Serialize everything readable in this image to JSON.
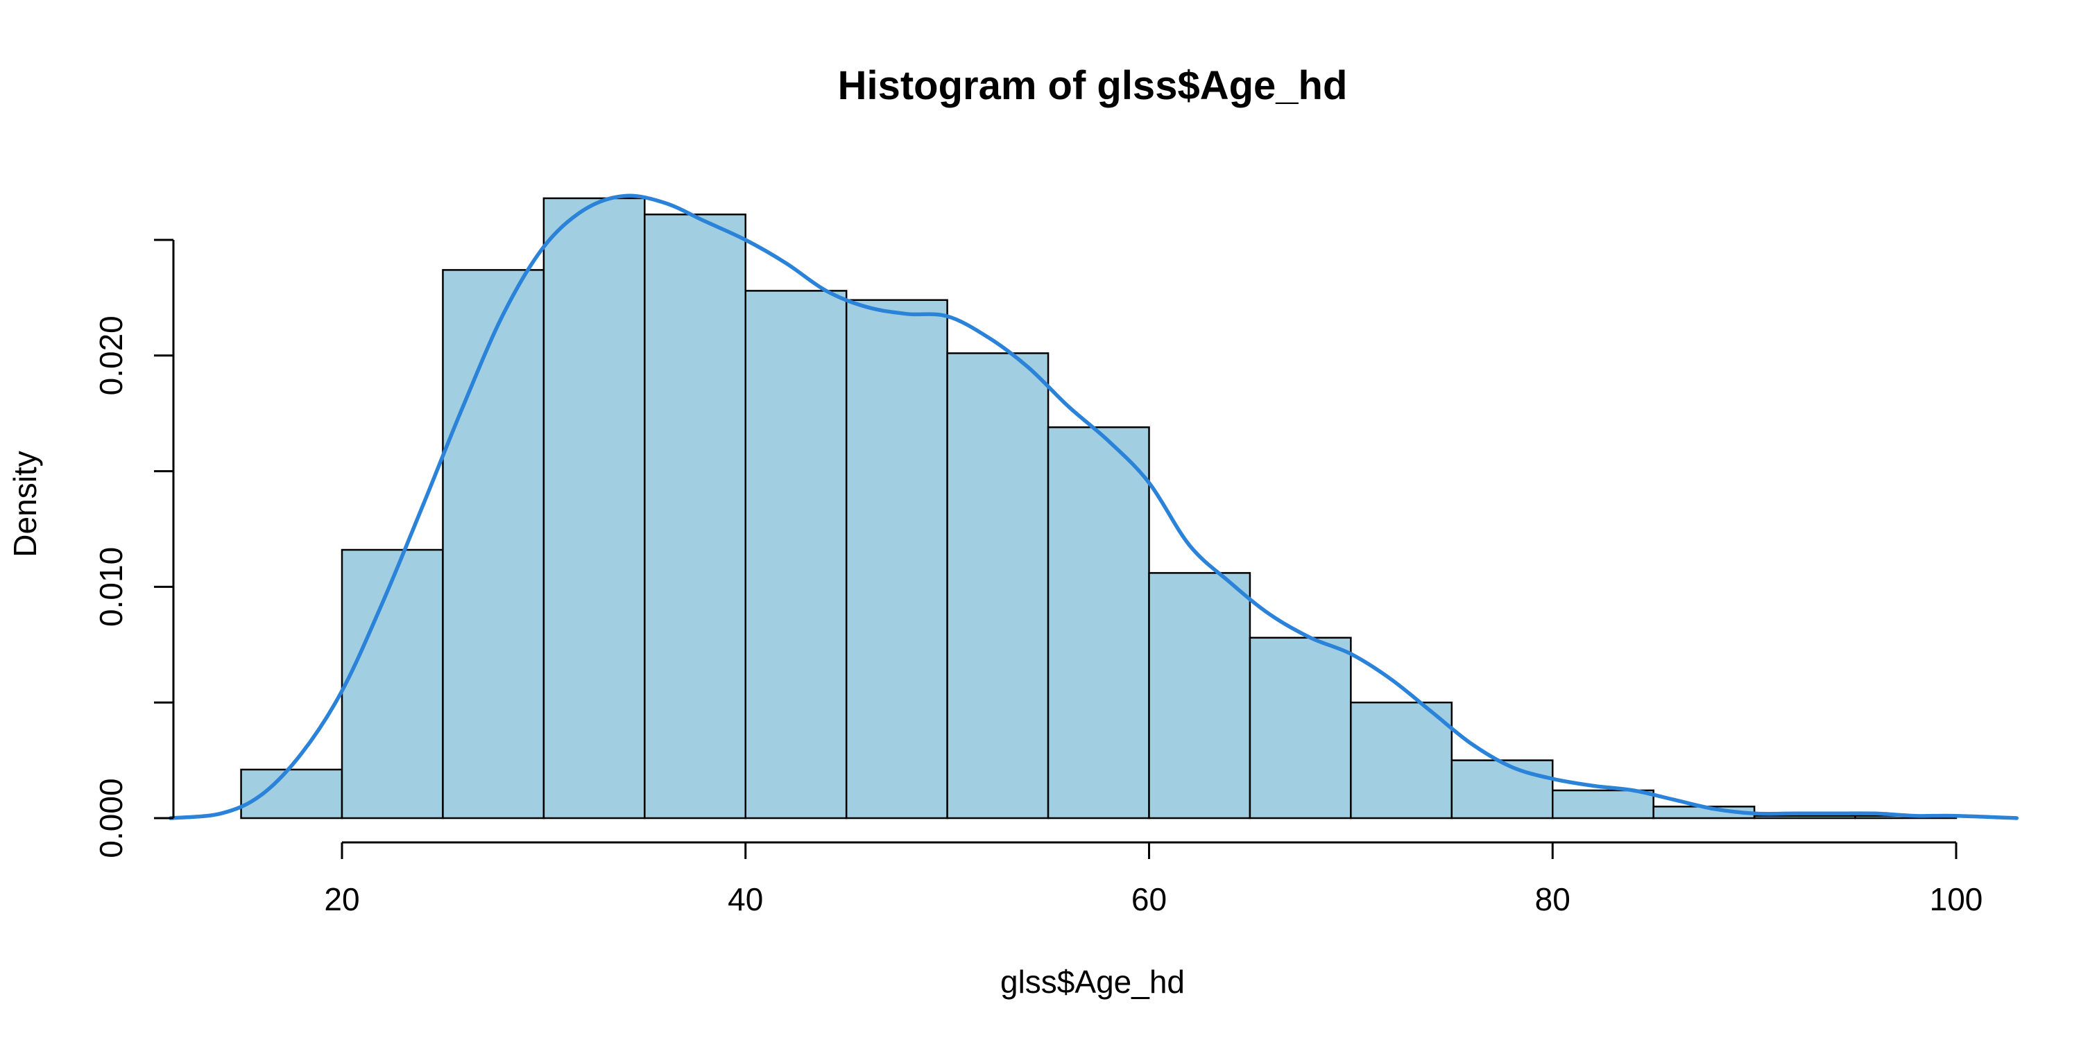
{
  "chart_data": {
    "type": "bar",
    "title": "Histogram of glss$Age_hd",
    "xlabel": "glss$Age_hd",
    "ylabel": "Density",
    "bins": [
      {
        "from": 15,
        "to": 20,
        "value": 0.0021
      },
      {
        "from": 20,
        "to": 25,
        "value": 0.0116
      },
      {
        "from": 25,
        "to": 30,
        "value": 0.0237
      },
      {
        "from": 30,
        "to": 35,
        "value": 0.0268
      },
      {
        "from": 35,
        "to": 40,
        "value": 0.0261
      },
      {
        "from": 40,
        "to": 45,
        "value": 0.0228
      },
      {
        "from": 45,
        "to": 50,
        "value": 0.0224
      },
      {
        "from": 50,
        "to": 55,
        "value": 0.0201
      },
      {
        "from": 55,
        "to": 60,
        "value": 0.0169
      },
      {
        "from": 60,
        "to": 65,
        "value": 0.0106
      },
      {
        "from": 65,
        "to": 70,
        "value": 0.0078
      },
      {
        "from": 70,
        "to": 75,
        "value": 0.005
      },
      {
        "from": 75,
        "to": 80,
        "value": 0.0025
      },
      {
        "from": 80,
        "to": 85,
        "value": 0.0012
      },
      {
        "from": 85,
        "to": 90,
        "value": 0.0005
      },
      {
        "from": 90,
        "to": 95,
        "value": 0.0001
      },
      {
        "from": 95,
        "to": 100,
        "value": 0.0001
      }
    ],
    "density_curve": {
      "x": [
        11.5,
        14,
        16,
        18,
        20,
        22,
        24,
        26,
        28,
        30,
        32,
        34,
        36,
        38,
        40,
        42,
        44,
        46,
        48,
        50,
        52,
        54,
        56,
        58,
        60,
        62,
        64,
        66,
        68,
        70,
        72,
        74,
        76,
        78,
        80,
        82,
        84,
        86,
        88,
        90,
        92,
        94,
        96,
        98,
        100,
        103
      ],
      "y": [
        0.0,
        0.0002,
        0.001,
        0.0028,
        0.0055,
        0.0093,
        0.0135,
        0.0178,
        0.0218,
        0.0247,
        0.0263,
        0.0269,
        0.0266,
        0.0258,
        0.025,
        0.024,
        0.0228,
        0.0221,
        0.0218,
        0.0217,
        0.0208,
        0.0195,
        0.0178,
        0.0163,
        0.0145,
        0.0118,
        0.0102,
        0.0088,
        0.0078,
        0.0071,
        0.006,
        0.0046,
        0.0032,
        0.0022,
        0.0017,
        0.0014,
        0.0012,
        0.0008,
        0.0004,
        0.0002,
        0.0002,
        0.0002,
        0.0002,
        0.0001,
        0.0001,
        0.0
      ]
    },
    "xlim": [
      11.5,
      103
    ],
    "ylim": [
      0,
      0.027
    ],
    "x_ticks": [
      20,
      40,
      60,
      80,
      100
    ],
    "x_tick_labels": [
      "20",
      "40",
      "60",
      "80",
      "100"
    ],
    "y_ticks": [
      0,
      0.005,
      0.01,
      0.015,
      0.02,
      0.025
    ],
    "y_tick_labels": [
      "0.000",
      "",
      "0.010",
      "",
      "0.020",
      ""
    ],
    "colors": {
      "bar_fill": "#a1cfe1",
      "bar_stroke": "#000000",
      "density_line": "#2a83d9"
    },
    "grid": false,
    "legend": "none"
  }
}
